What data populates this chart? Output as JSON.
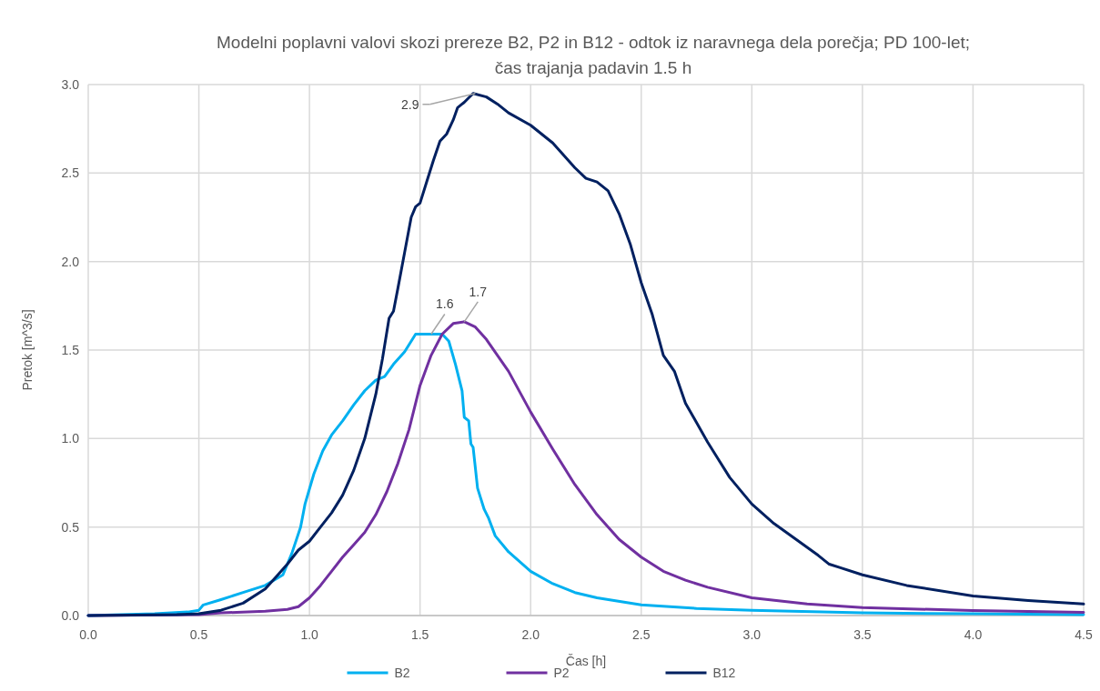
{
  "chart_data": {
    "type": "line",
    "title": "Modelni poplavni valovi skozi prereze B2, P2 in B12 - odtok iz naravnega dela porečja; PD 100-let; čas trajanja padavin 1.5 h",
    "xlabel": "Čas [h]",
    "ylabel": "Pretok [m^3/s]",
    "xlim": [
      0,
      4.5
    ],
    "ylim": [
      0,
      3
    ],
    "xticks": [
      {
        "value": 0,
        "label": "0.0"
      },
      {
        "value": 0.5,
        "label": "0.5"
      },
      {
        "value": 1,
        "label": "1.0"
      },
      {
        "value": 1.5,
        "label": "1.5"
      },
      {
        "value": 2,
        "label": "2.0"
      },
      {
        "value": 2.5,
        "label": "2.5"
      },
      {
        "value": 3,
        "label": "3.0"
      },
      {
        "value": 3.5,
        "label": "3.5"
      },
      {
        "value": 4,
        "label": "4.0"
      },
      {
        "value": 4.5,
        "label": "4.5"
      }
    ],
    "yticks": [
      {
        "value": 0,
        "label": "0.0"
      },
      {
        "value": 0.5,
        "label": "0.5"
      },
      {
        "value": 1,
        "label": "1.0"
      },
      {
        "value": 1.5,
        "label": "1.5"
      },
      {
        "value": 2,
        "label": "2.0"
      },
      {
        "value": 2.5,
        "label": "2.5"
      },
      {
        "value": 3,
        "label": "3.0"
      }
    ],
    "grid": true,
    "legend": "bottom",
    "marker": "none",
    "line_style": "solid",
    "annotations": [
      {
        "text": "2.9",
        "x": 1.75,
        "y": 2.95
      },
      {
        "text": "1.6",
        "x": 1.55,
        "y": 1.59
      },
      {
        "text": "1.7",
        "x": 1.7,
        "y": 1.66
      }
    ],
    "series": [
      {
        "name": "B2",
        "color": "#00b0f0",
        "x": [
          0,
          0.3,
          0.45,
          0.5,
          0.52,
          0.6,
          0.7,
          0.8,
          0.88,
          0.92,
          0.96,
          0.98,
          1.02,
          1.06,
          1.1,
          1.15,
          1.2,
          1.25,
          1.3,
          1.34,
          1.38,
          1.43,
          1.48,
          1.6,
          1.63,
          1.66,
          1.69,
          1.7,
          1.72,
          1.73,
          1.74,
          1.76,
          1.79,
          1.81,
          1.84,
          1.9,
          2.0,
          2.1,
          2.2,
          2.3,
          2.5,
          2.75,
          3.0,
          3.5,
          4.0,
          4.5
        ],
        "values": [
          0,
          0.01,
          0.02,
          0.03,
          0.06,
          0.09,
          0.13,
          0.17,
          0.23,
          0.35,
          0.5,
          0.63,
          0.8,
          0.93,
          1.02,
          1.1,
          1.19,
          1.27,
          1.33,
          1.35,
          1.42,
          1.49,
          1.59,
          1.59,
          1.55,
          1.42,
          1.27,
          1.12,
          1.1,
          0.97,
          0.95,
          0.72,
          0.6,
          0.55,
          0.45,
          0.36,
          0.25,
          0.18,
          0.13,
          0.1,
          0.06,
          0.04,
          0.03,
          0.015,
          0.01,
          0.005
        ]
      },
      {
        "name": "P2",
        "color": "#7030a0",
        "x": [
          0,
          0.5,
          0.6,
          0.8,
          0.9,
          0.95,
          1.0,
          1.05,
          1.1,
          1.15,
          1.2,
          1.25,
          1.3,
          1.35,
          1.4,
          1.45,
          1.5,
          1.55,
          1.6,
          1.65,
          1.7,
          1.75,
          1.8,
          1.9,
          2.0,
          2.1,
          2.2,
          2.3,
          2.4,
          2.5,
          2.6,
          2.7,
          2.8,
          3.0,
          3.25,
          3.5,
          4.0,
          4.5
        ],
        "values": [
          0,
          0.005,
          0.015,
          0.025,
          0.035,
          0.05,
          0.1,
          0.17,
          0.25,
          0.33,
          0.4,
          0.47,
          0.57,
          0.7,
          0.86,
          1.05,
          1.3,
          1.47,
          1.59,
          1.65,
          1.66,
          1.63,
          1.56,
          1.38,
          1.15,
          0.94,
          0.74,
          0.57,
          0.43,
          0.33,
          0.25,
          0.2,
          0.16,
          0.1,
          0.065,
          0.045,
          0.028,
          0.018
        ]
      },
      {
        "name": "B12",
        "color": "#002060",
        "x": [
          0,
          0.4,
          0.5,
          0.6,
          0.7,
          0.8,
          0.85,
          0.9,
          0.95,
          1.0,
          1.05,
          1.1,
          1.15,
          1.2,
          1.25,
          1.3,
          1.33,
          1.36,
          1.38,
          1.4,
          1.43,
          1.46,
          1.48,
          1.5,
          1.53,
          1.56,
          1.59,
          1.62,
          1.65,
          1.67,
          1.7,
          1.74,
          1.8,
          1.85,
          1.9,
          2.0,
          2.1,
          2.2,
          2.25,
          2.3,
          2.35,
          2.4,
          2.45,
          2.5,
          2.55,
          2.6,
          2.65,
          2.7,
          2.75,
          2.8,
          2.85,
          2.9,
          3.0,
          3.1,
          3.2,
          3.3,
          3.35,
          3.4,
          3.5,
          3.7,
          4.0,
          4.25,
          4.5
        ],
        "values": [
          0,
          0.005,
          0.01,
          0.03,
          0.07,
          0.15,
          0.22,
          0.29,
          0.37,
          0.42,
          0.5,
          0.58,
          0.68,
          0.82,
          1.0,
          1.25,
          1.45,
          1.68,
          1.72,
          1.85,
          2.05,
          2.25,
          2.31,
          2.33,
          2.45,
          2.57,
          2.68,
          2.72,
          2.8,
          2.87,
          2.9,
          2.95,
          2.93,
          2.89,
          2.84,
          2.77,
          2.67,
          2.53,
          2.47,
          2.45,
          2.4,
          2.27,
          2.1,
          1.88,
          1.7,
          1.47,
          1.38,
          1.2,
          1.09,
          0.98,
          0.88,
          0.78,
          0.63,
          0.52,
          0.43,
          0.34,
          0.29,
          0.27,
          0.23,
          0.17,
          0.11,
          0.085,
          0.065
        ]
      }
    ]
  }
}
